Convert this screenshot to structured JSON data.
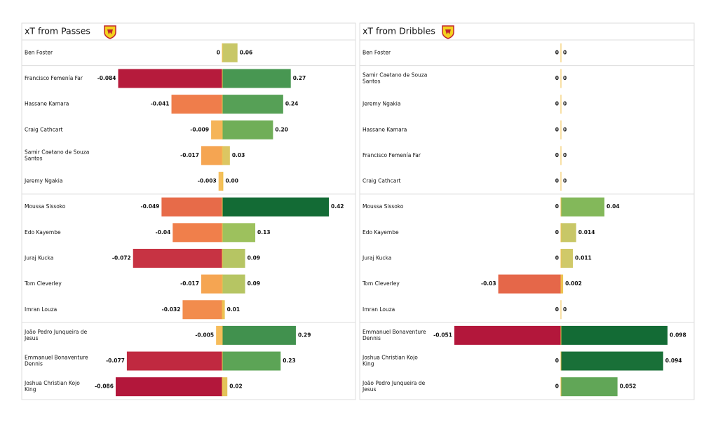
{
  "chart_data": [
    {
      "type": "diverging-bar",
      "title": "xT from Passes",
      "categories": [
        "Ben Foster",
        "Francisco Femenía Far",
        "Hassane Kamara",
        "Craig Cathcart",
        "Samir Caetano de Souza Santos",
        "Jeremy Ngakia",
        "Moussa Sissoko",
        "Edo Kayembe",
        "Juraj Kucka",
        "Tom Cleverley",
        "Imran Louza",
        "João Pedro Junqueira de Jesus",
        "Emmanuel Bonaventure Dennis",
        "Joshua Christian Kojo King"
      ],
      "series": [
        {
          "values": [
            0,
            -0.084,
            -0.041,
            -0.009,
            -0.017,
            -0.003,
            -0.049,
            -0.04,
            -0.072,
            -0.017,
            -0.032,
            -0.005,
            -0.077,
            -0.086
          ]
        },
        {
          "values": [
            0.06,
            0.27,
            0.24,
            0.2,
            0.03,
            0.004,
            0.42,
            0.13,
            0.09,
            0.09,
            0.01,
            0.29,
            0.23,
            0.02
          ],
          "value_labels": [
            "0.06",
            "0.27",
            "0.24",
            "0.20",
            "0.03",
            "0.00",
            "0.42",
            "0.13",
            "0.09",
            "0.09",
            "0.01",
            "0.29",
            "0.23",
            "0.02"
          ]
        }
      ]
    },
    {
      "type": "diverging-bar",
      "title": "xT from Dribbles",
      "categories": [
        "Ben Foster",
        "Samir Caetano de Souza Santos",
        "Jeremy Ngakia",
        "Hassane Kamara",
        "Francisco Femenía Far",
        "Craig Cathcart",
        "Moussa Sissoko",
        "Edo Kayembe",
        "Juraj Kucka",
        "Tom Cleverley",
        "Imran Louza",
        "Emmanuel Bonaventure Dennis",
        "Joshua Christian Kojo King",
        "João Pedro Junqueira de Jesus"
      ],
      "series": [
        {
          "values": [
            0,
            0,
            0,
            0,
            0,
            0,
            0,
            0,
            0,
            -0.03,
            0,
            -0.051,
            0,
            0
          ]
        },
        {
          "values": [
            0,
            0,
            0,
            0,
            0,
            0,
            0.04,
            0.014,
            0.011,
            0.002,
            0,
            0.098,
            0.094,
            0.052
          ]
        }
      ]
    }
  ]
}
